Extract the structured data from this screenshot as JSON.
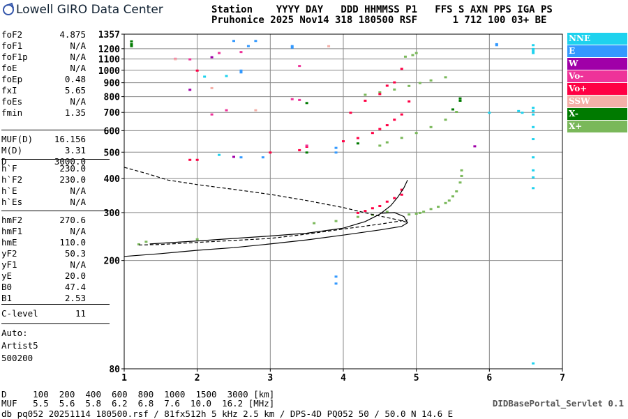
{
  "header": {
    "logo": "Lowell GIRO Data Center",
    "line1": "Station    YYYY DAY   DDD HHMMSS P1   FFS S AXN PPS IGA PS",
    "line2": "Pruhonice 2025 Nov14 318 180500 RSF      1 712 100 03+ BE"
  },
  "params": [
    [
      {
        "name": "foF2",
        "value": "4.875"
      },
      {
        "name": "foF1",
        "value": "N/A"
      },
      {
        "name": "foF1p",
        "value": "N/A"
      },
      {
        "name": "foE",
        "value": "N/A"
      },
      {
        "name": "foEp",
        "value": "0.48"
      },
      {
        "name": "fxI",
        "value": "5.65"
      },
      {
        "name": "foEs",
        "value": "N/A"
      },
      {
        "name": "fmin",
        "value": "1.35"
      }
    ],
    [
      {
        "name": "MUF(D)",
        "value": "16.156"
      },
      {
        "name": "M(D)",
        "value": "3.31"
      },
      {
        "name": "D",
        "value": "3000.0"
      }
    ],
    [
      {
        "name": "h`F",
        "value": "230.0"
      },
      {
        "name": "h`F2",
        "value": "230.0"
      },
      {
        "name": "h`E",
        "value": "N/A"
      },
      {
        "name": "h`Es",
        "value": "N/A"
      }
    ],
    [
      {
        "name": "hmF2",
        "value": "270.6"
      },
      {
        "name": "hmF1",
        "value": "N/A"
      },
      {
        "name": "hmE",
        "value": "110.0"
      },
      {
        "name": "yF2",
        "value": "50.3"
      },
      {
        "name": "yF1",
        "value": "N/A"
      },
      {
        "name": "yE",
        "value": "20.0"
      },
      {
        "name": "B0",
        "value": "47.4"
      },
      {
        "name": "B1",
        "value": "2.53"
      }
    ],
    [
      {
        "name": "C-level",
        "value": "11"
      }
    ]
  ],
  "auto": [
    "Auto:",
    "Artist5",
    "500200"
  ],
  "legend": [
    {
      "label": "NNE",
      "color": "#1ed2ee"
    },
    {
      "label": "E",
      "color": "#3399ff"
    },
    {
      "label": "W",
      "color": "#a000a8"
    },
    {
      "label": "Vo-",
      "color": "#ee3399"
    },
    {
      "label": "Vo+",
      "color": "#ff0044"
    },
    {
      "label": "SSW",
      "color": "#f4b0a8"
    },
    {
      "label": "X-",
      "color": "#007a00"
    },
    {
      "label": "X+",
      "color": "#7ab85a"
    }
  ],
  "footer": {
    "d_line": "D     100  200  400  600  800  1000  1500  3000 [km]",
    "muf_line": "MUF   5.5  5.6  5.8  6.2  6.8  7.6  10.0  16.2 [MHz]",
    "file_line": "db pq052 20251114 180500.rsf / 81fx512h 5 kHz 2.5 km / DPS-4D PQ052 50 / 50.0 N 14.6 E",
    "servlet": "DIDBasePortal_Servlet 0.1"
  },
  "chart_data": {
    "type": "scatter",
    "xlim": [
      1,
      7
    ],
    "ylim": [
      80,
      1357
    ],
    "x_ticks": [
      "1",
      "2",
      "3",
      "4",
      "5",
      "6",
      "7"
    ],
    "y_ticks": [
      "80",
      "200",
      "300",
      "400",
      "500",
      "600",
      "700",
      "800",
      "900",
      "1000",
      "1100",
      "1200",
      "1357"
    ],
    "grid": true,
    "series": [
      {
        "name": "X+",
        "color": "#7ab85a",
        "points": [
          [
            4.9,
            296
          ],
          [
            5.0,
            298
          ],
          [
            5.05,
            300
          ],
          [
            5.1,
            303
          ],
          [
            5.2,
            310
          ],
          [
            5.3,
            316
          ],
          [
            5.4,
            326
          ],
          [
            5.45,
            333
          ],
          [
            5.5,
            345
          ],
          [
            5.55,
            360
          ],
          [
            5.6,
            388
          ],
          [
            5.62,
            410
          ],
          [
            5.62,
            430
          ],
          [
            4.5,
            530
          ],
          [
            4.6,
            545
          ],
          [
            4.8,
            566
          ],
          [
            5.0,
            590
          ],
          [
            5.2,
            620
          ],
          [
            5.4,
            660
          ],
          [
            5.55,
            705
          ],
          [
            5.6,
            775
          ],
          [
            4.3,
            815
          ],
          [
            4.5,
            832
          ],
          [
            4.7,
            852
          ],
          [
            4.9,
            878
          ],
          [
            5.05,
            900
          ],
          [
            5.2,
            920
          ],
          [
            5.4,
            945
          ],
          [
            4.85,
            1125
          ],
          [
            4.95,
            1140
          ],
          [
            5.0,
            1160
          ],
          [
            4.4,
            295
          ],
          [
            4.6,
            303
          ],
          [
            4.2,
            290
          ],
          [
            3.9,
            280
          ],
          [
            3.6,
            275
          ],
          [
            1.2,
            230
          ],
          [
            1.3,
            235
          ],
          [
            2.0,
            240
          ]
        ]
      },
      {
        "name": "X-",
        "color": "#007a00",
        "points": [
          [
            1.1,
            1250
          ],
          [
            1.1,
            1280
          ],
          [
            1.1,
            1230
          ],
          [
            3.5,
            760
          ],
          [
            5.6,
            790
          ],
          [
            5.6,
            775
          ],
          [
            5.5,
            720
          ],
          [
            4.2,
            540
          ],
          [
            3.5,
            500
          ]
        ]
      },
      {
        "name": "Vo+",
        "color": "#ff0044",
        "points": [
          [
            4.7,
            340
          ],
          [
            4.6,
            330
          ],
          [
            4.5,
            318
          ],
          [
            4.4,
            312
          ],
          [
            4.3,
            305
          ],
          [
            4.2,
            300
          ],
          [
            4.8,
            365
          ],
          [
            4.8,
            350
          ],
          [
            4.0,
            550
          ],
          [
            4.2,
            565
          ],
          [
            4.4,
            590
          ],
          [
            4.5,
            610
          ],
          [
            4.6,
            630
          ],
          [
            4.7,
            660
          ],
          [
            4.8,
            690
          ],
          [
            4.1,
            700
          ],
          [
            4.3,
            775
          ],
          [
            4.5,
            820
          ],
          [
            4.6,
            880
          ],
          [
            4.7,
            905
          ],
          [
            4.9,
            770
          ],
          [
            3.5,
            525
          ],
          [
            3.4,
            510
          ],
          [
            3.0,
            500
          ],
          [
            2.0,
            470
          ],
          [
            1.9,
            470
          ],
          [
            4.8,
            1015
          ],
          [
            2.0,
            1000
          ]
        ]
      },
      {
        "name": "Vo-",
        "color": "#ee3399",
        "points": [
          [
            3.5,
            530
          ],
          [
            3.3,
            785
          ],
          [
            3.4,
            780
          ],
          [
            2.4,
            715
          ],
          [
            2.2,
            690
          ],
          [
            1.9,
            1100
          ],
          [
            1.7,
            1105
          ],
          [
            2.3,
            1160
          ],
          [
            2.6,
            1170
          ],
          [
            3.4,
            1040
          ]
        ]
      },
      {
        "name": "W",
        "color": "#a000a8",
        "points": [
          [
            5.8,
            527
          ],
          [
            2.5,
            482
          ],
          [
            1.9,
            850
          ],
          [
            2.2,
            1120
          ]
        ]
      },
      {
        "name": "E",
        "color": "#3399ff",
        "points": [
          [
            6.1,
            1240
          ],
          [
            6.1,
            1250
          ],
          [
            3.3,
            1230
          ],
          [
            3.3,
            1215
          ],
          [
            2.6,
            1000
          ],
          [
            2.6,
            985
          ],
          [
            2.7,
            1230
          ],
          [
            2.5,
            1285
          ],
          [
            2.8,
            1285
          ],
          [
            3.9,
            500
          ],
          [
            3.9,
            520
          ],
          [
            3.9,
            175
          ],
          [
            3.9,
            165
          ],
          [
            2.9,
            480
          ],
          [
            2.6,
            480
          ]
        ]
      },
      {
        "name": "NNE",
        "color": "#1ed2ee",
        "points": [
          [
            6.6,
            1240
          ],
          [
            6.6,
            1200
          ],
          [
            6.6,
            1160
          ],
          [
            6.6,
            1180
          ],
          [
            6.6,
            730
          ],
          [
            6.6,
            710
          ],
          [
            6.6,
            690
          ],
          [
            6.6,
            620
          ],
          [
            6.6,
            560
          ],
          [
            6.6,
            480
          ],
          [
            6.6,
            430
          ],
          [
            6.6,
            405
          ],
          [
            6.6,
            370
          ],
          [
            6.6,
            84
          ],
          [
            6.45,
            700
          ],
          [
            6.4,
            710
          ],
          [
            6.0,
            700
          ],
          [
            2.4,
            955
          ],
          [
            2.1,
            950
          ],
          [
            2.3,
            490
          ]
        ]
      },
      {
        "name": "SSW",
        "color": "#f4b0a8",
        "points": [
          [
            2.2,
            862
          ],
          [
            1.7,
            1101
          ],
          [
            2.8,
            715
          ],
          [
            3.8,
            1229
          ]
        ]
      }
    ],
    "traces": [
      {
        "style": "solid",
        "points": [
          [
            1.35,
            230
          ],
          [
            2.0,
            236
          ],
          [
            2.5,
            241
          ],
          [
            3.0,
            246
          ],
          [
            3.5,
            252
          ],
          [
            4.0,
            263
          ],
          [
            4.3,
            278
          ],
          [
            4.5,
            296
          ],
          [
            4.65,
            318
          ],
          [
            4.75,
            343
          ],
          [
            4.83,
            370
          ],
          [
            4.88,
            395
          ]
        ]
      },
      {
        "style": "solid",
        "points": [
          [
            1.0,
            207
          ],
          [
            1.5,
            212
          ],
          [
            2.0,
            218
          ],
          [
            2.5,
            223
          ],
          [
            3.0,
            230
          ],
          [
            3.5,
            238
          ],
          [
            4.0,
            248
          ],
          [
            4.5,
            259
          ],
          [
            4.8,
            267
          ],
          [
            4.88,
            275
          ],
          [
            4.83,
            290
          ],
          [
            4.7,
            300
          ],
          [
            4.5,
            298
          ]
        ]
      },
      {
        "style": "dashed",
        "points": [
          [
            1.0,
            440
          ],
          [
            1.3,
            418
          ],
          [
            1.6,
            395
          ],
          [
            2.0,
            380
          ],
          [
            2.5,
            365
          ],
          [
            3.0,
            350
          ],
          [
            3.5,
            332
          ],
          [
            4.0,
            313
          ],
          [
            4.4,
            295
          ],
          [
            4.75,
            282
          ],
          [
            4.88,
            276
          ]
        ]
      },
      {
        "style": "dashed",
        "points": [
          [
            1.2,
            228
          ],
          [
            1.5,
            229
          ],
          [
            2.0,
            233
          ],
          [
            2.5,
            237
          ],
          [
            3.0,
            241
          ],
          [
            3.5,
            250
          ],
          [
            4.0,
            261
          ],
          [
            4.5,
            272
          ],
          [
            4.88,
            282
          ]
        ]
      }
    ]
  }
}
